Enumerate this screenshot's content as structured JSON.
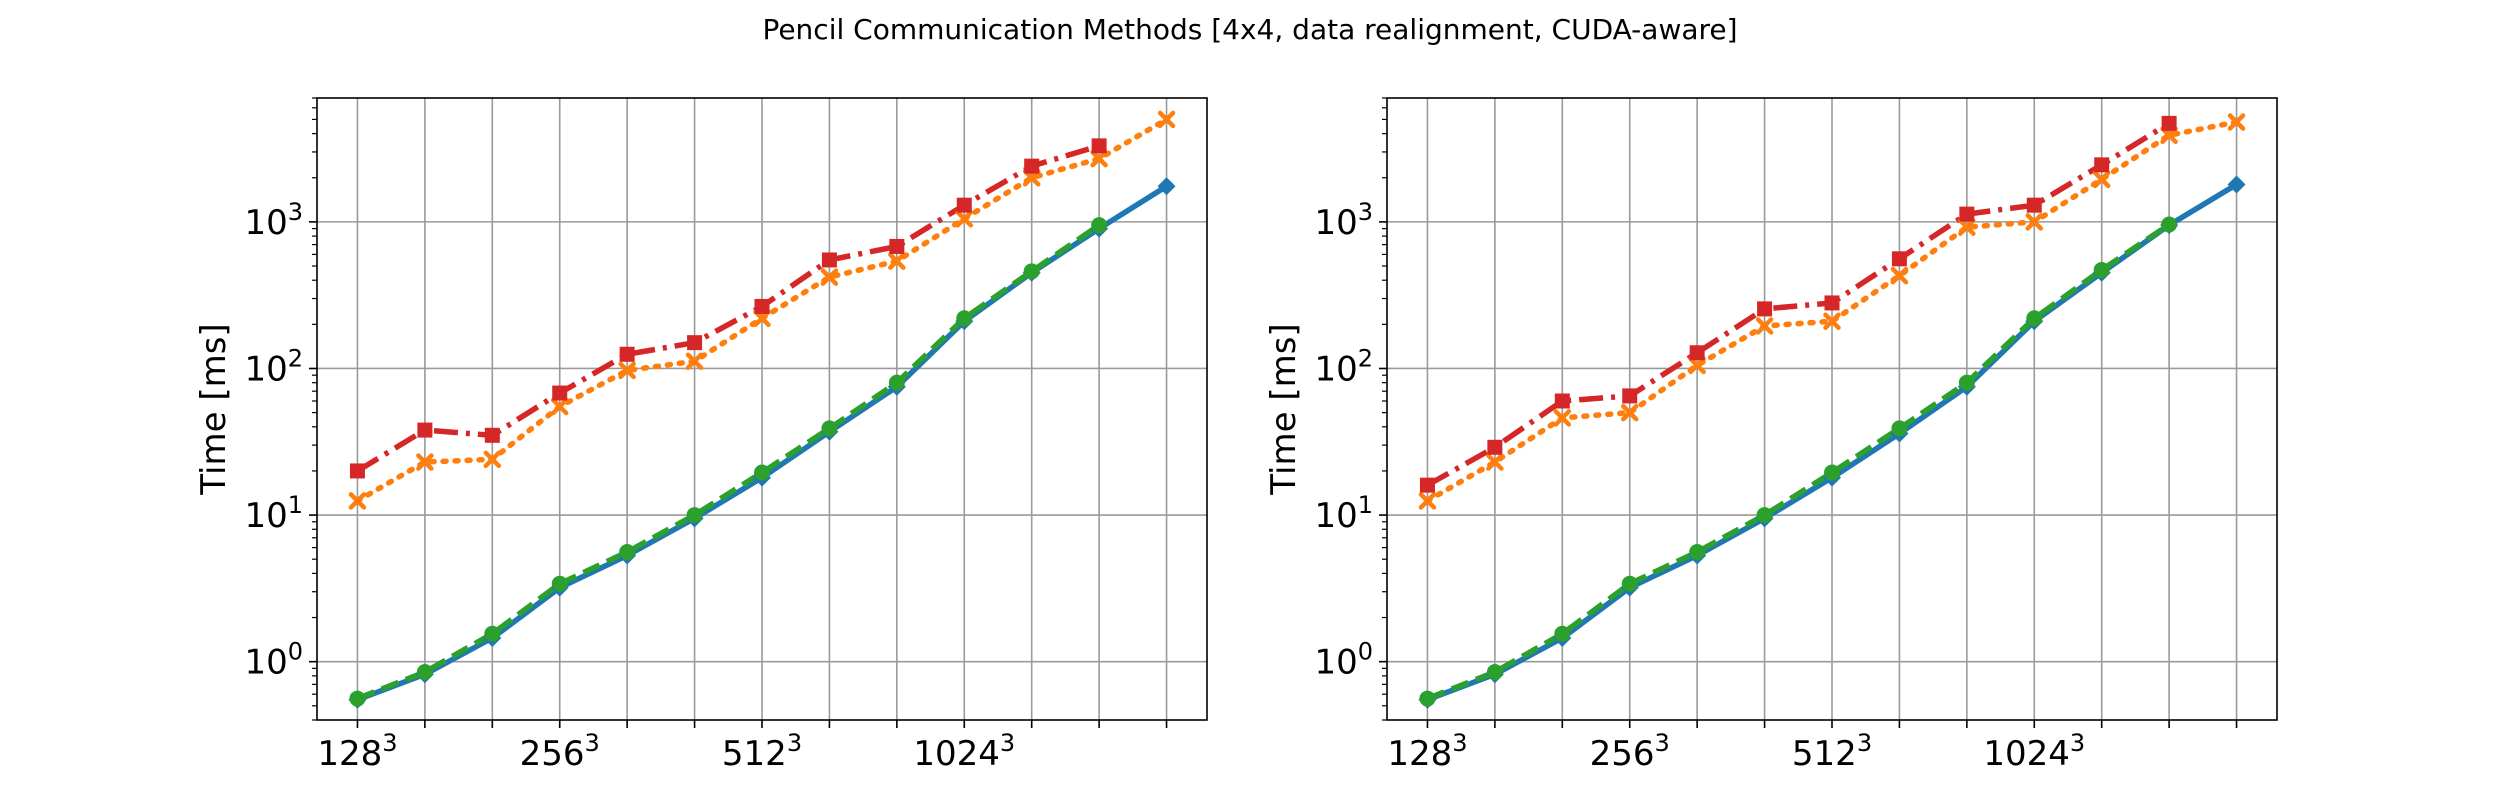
{
  "figure": {
    "title": "Pencil Communication Methods [4x4, data realignment, CUDA-aware]"
  },
  "chart_data": [
    {
      "type": "line",
      "y_scale": "log",
      "ylabel": "Time [ms]",
      "x_ticks": [
        {
          "base": "128",
          "exp": "3",
          "x": 0
        },
        {
          "base": "256",
          "exp": "3",
          "x": 3
        },
        {
          "base": "512",
          "exp": "3",
          "x": 6
        },
        {
          "base": "1024",
          "exp": "3",
          "x": 9
        }
      ],
      "y_ticks": [
        {
          "base": "10",
          "exp": "0",
          "value": 1
        },
        {
          "base": "10",
          "exp": "1",
          "value": 10
        },
        {
          "base": "10",
          "exp": "2",
          "value": 100
        },
        {
          "base": "10",
          "exp": "3",
          "value": 1000
        }
      ],
      "xlim": [
        -0.6,
        12.6
      ],
      "ylim": [
        0.4,
        7000
      ],
      "grid": true,
      "series": [
        {
          "color": "#1f77b4",
          "dash": "",
          "marker": "diamond",
          "x": [
            0,
            1,
            2,
            3,
            4,
            5,
            6,
            7,
            8,
            9,
            10,
            11,
            12
          ],
          "values": [
            0.55,
            0.82,
            1.45,
            3.2,
            5.3,
            9.5,
            18,
            37,
            75,
            210,
            450,
            900,
            1750
          ]
        },
        {
          "color": "#ff7f0e",
          "dash": "3,9",
          "marker": "x",
          "x": [
            0,
            1,
            2,
            3,
            4,
            5,
            6,
            7,
            8,
            9,
            10,
            11,
            12
          ],
          "values": [
            12.5,
            23,
            24,
            55,
            97,
            112,
            220,
            420,
            540,
            1050,
            2000,
            2700,
            5000
          ]
        },
        {
          "color": "#2ca02c",
          "dash": "18,8",
          "marker": "circle",
          "x": [
            0,
            1,
            2,
            3,
            4,
            5,
            6,
            7,
            8,
            9,
            10,
            11
          ],
          "values": [
            0.56,
            0.85,
            1.55,
            3.4,
            5.6,
            10,
            19.5,
            39,
            80,
            220,
            460,
            950
          ]
        },
        {
          "color": "#d62728",
          "dash": "24,8,4,8",
          "marker": "square",
          "x": [
            0,
            1,
            2,
            3,
            4,
            5,
            6,
            7,
            8,
            9,
            10,
            11
          ],
          "values": [
            20,
            38,
            35,
            68,
            125,
            150,
            265,
            550,
            680,
            1300,
            2400,
            3300
          ]
        }
      ]
    },
    {
      "type": "line",
      "y_scale": "log",
      "ylabel": "Time [ms]",
      "x_ticks": [
        {
          "base": "128",
          "exp": "3",
          "x": 0
        },
        {
          "base": "256",
          "exp": "3",
          "x": 3
        },
        {
          "base": "512",
          "exp": "3",
          "x": 6
        },
        {
          "base": "1024",
          "exp": "3",
          "x": 9
        }
      ],
      "y_ticks": [
        {
          "base": "10",
          "exp": "0",
          "value": 1
        },
        {
          "base": "10",
          "exp": "1",
          "value": 10
        },
        {
          "base": "10",
          "exp": "2",
          "value": 100
        },
        {
          "base": "10",
          "exp": "3",
          "value": 1000
        }
      ],
      "xlim": [
        -0.6,
        12.6
      ],
      "ylim": [
        0.4,
        7000
      ],
      "grid": true,
      "series": [
        {
          "color": "#1f77b4",
          "dash": "",
          "marker": "diamond",
          "x": [
            0,
            1,
            2,
            3,
            4,
            5,
            6,
            7,
            8,
            9,
            10,
            11,
            12
          ],
          "values": [
            0.55,
            0.82,
            1.45,
            3.2,
            5.3,
            9.5,
            18,
            36,
            75,
            210,
            450,
            950,
            1800
          ]
        },
        {
          "color": "#ff7f0e",
          "dash": "3,9",
          "marker": "x",
          "x": [
            0,
            1,
            2,
            3,
            4,
            5,
            6,
            7,
            8,
            9,
            10,
            11,
            12
          ],
          "values": [
            12.5,
            23,
            46,
            50,
            105,
            195,
            210,
            430,
            920,
            1000,
            1950,
            3900,
            4800
          ]
        },
        {
          "color": "#2ca02c",
          "dash": "18,8",
          "marker": "circle",
          "x": [
            0,
            1,
            2,
            3,
            4,
            5,
            6,
            7,
            8,
            9,
            10,
            11
          ],
          "values": [
            0.56,
            0.85,
            1.55,
            3.4,
            5.6,
            10,
            19.5,
            39,
            80,
            220,
            470,
            960
          ]
        },
        {
          "color": "#d62728",
          "dash": "24,8,4,8",
          "marker": "square",
          "x": [
            0,
            1,
            2,
            3,
            4,
            5,
            6,
            7,
            8,
            9,
            10,
            11
          ],
          "values": [
            16,
            29,
            60,
            65,
            128,
            255,
            280,
            560,
            1130,
            1300,
            2450,
            4700
          ]
        }
      ]
    }
  ]
}
